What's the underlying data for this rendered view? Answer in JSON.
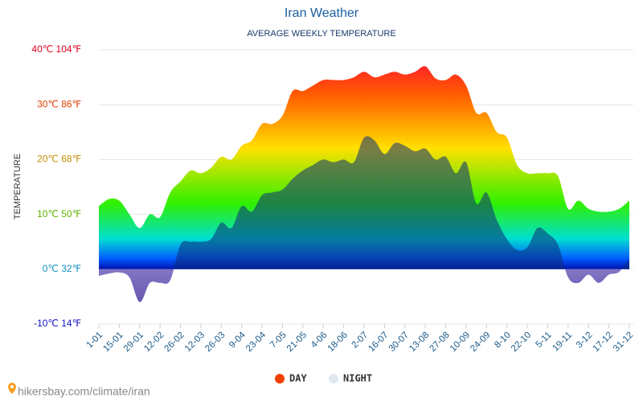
{
  "chart_data": {
    "type": "area",
    "title": "Iran Weather",
    "subtitle": "AVERAGE WEEKLY TEMPERATURE",
    "y_label": "TEMPERATURE",
    "source": "hikersbay.com/climate/iran",
    "categories": [
      "1-01",
      null,
      "15-01",
      null,
      "29-01",
      null,
      "12-02",
      null,
      "26-02",
      null,
      "12-03",
      null,
      "26-03",
      null,
      "9-04",
      null,
      "23-04",
      null,
      "7-05",
      null,
      "21-05",
      null,
      "4-06",
      null,
      "18-06",
      null,
      "2-07",
      null,
      "16-07",
      null,
      "30-07",
      null,
      "13-08",
      null,
      "27-08",
      null,
      "10-09",
      null,
      "24-09",
      null,
      "8-10",
      null,
      "22-10",
      null,
      "5-11",
      null,
      "19-11",
      null,
      "3-12",
      null,
      "17-12",
      null,
      "31-12"
    ],
    "series": [
      {
        "name": "DAY",
        "color": "#f04000",
        "values": [
          11.5,
          12.8,
          12.5,
          10,
          7.5,
          10,
          9.5,
          14,
          16,
          18,
          17.5,
          18.5,
          20.5,
          20,
          22.5,
          23.5,
          26.5,
          26.5,
          28,
          32.5,
          32.5,
          33.5,
          34.5,
          34.5,
          34.5,
          35,
          36,
          35,
          35.5,
          36,
          35.5,
          36,
          37,
          34.8,
          34.5,
          35.5,
          33.5,
          28.5,
          28.5,
          25,
          24,
          19,
          17.5,
          17.5,
          17.5,
          17,
          11,
          12.5,
          11,
          10.5,
          10.5,
          11,
          12.5
        ]
      },
      {
        "name": "NIGHT",
        "color": "#e0e8f0",
        "values": [
          -1.2,
          -0.8,
          -0.6,
          -1.5,
          -6,
          -2.5,
          -2.5,
          -2,
          4.5,
          5,
          5,
          5.5,
          8.5,
          7.5,
          11.5,
          10.5,
          13.5,
          14,
          14.5,
          16.5,
          18,
          19,
          20,
          19.5,
          20,
          19.5,
          24,
          23.5,
          21,
          23,
          22.5,
          21.5,
          22,
          20,
          20.5,
          17.5,
          19.5,
          12,
          14,
          9,
          5.5,
          3.5,
          4,
          7.5,
          6.5,
          4.5,
          -1.5,
          -2.5,
          -1,
          -2.5,
          -1,
          -0.5,
          2
        ]
      }
    ],
    "ylim": [
      -10,
      40
    ],
    "yticks": [
      {
        "value": -10,
        "label": "-10℃ 14℉"
      },
      {
        "value": 0,
        "label": "0℃ 32℉"
      },
      {
        "value": 10,
        "label": "10℃ 50℉"
      },
      {
        "value": 20,
        "label": "20℃ 68℉"
      },
      {
        "value": 30,
        "label": "30℃ 86℉"
      },
      {
        "value": 40,
        "label": "40℃ 104℉"
      }
    ],
    "ytick_colors": [
      "#1010c0",
      "#1090c0",
      "#60b000",
      "#c09000",
      "#e04000",
      "#e00020"
    ],
    "grid": true
  }
}
